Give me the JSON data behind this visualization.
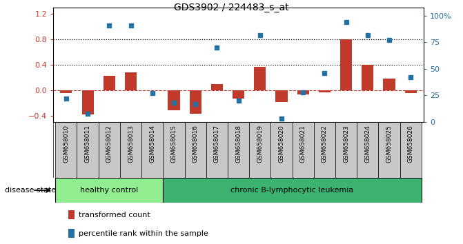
{
  "title": "GDS3902 / 224483_s_at",
  "samples": [
    "GSM658010",
    "GSM658011",
    "GSM658012",
    "GSM658013",
    "GSM658014",
    "GSM658015",
    "GSM658016",
    "GSM658017",
    "GSM658018",
    "GSM658019",
    "GSM658020",
    "GSM658021",
    "GSM658022",
    "GSM658023",
    "GSM658024",
    "GSM658025",
    "GSM658026"
  ],
  "transformed_count": [
    -0.05,
    -0.38,
    0.22,
    0.28,
    0.0,
    -0.32,
    -0.37,
    0.1,
    -0.13,
    0.37,
    -0.19,
    -0.07,
    -0.03,
    0.8,
    0.4,
    0.18,
    -0.05
  ],
  "percentile_rank": [
    22,
    8,
    91,
    91,
    27,
    18,
    17,
    70,
    20,
    82,
    3,
    28,
    46,
    94,
    82,
    77,
    42
  ],
  "healthy_control_count": 5,
  "disease_label_healthy": "healthy control",
  "disease_label_chronic": "chronic B-lymphocytic leukemia",
  "disease_state_label": "disease state",
  "legend_transformed": "transformed count",
  "legend_percentile": "percentile rank within the sample",
  "ylim_left": [
    -0.5,
    1.3
  ],
  "ylim_right": [
    0,
    108.0
  ],
  "yticks_left": [
    -0.4,
    0.0,
    0.4,
    0.8,
    1.2
  ],
  "yticks_right": [
    0,
    25,
    50,
    75,
    100
  ],
  "ytick_labels_right": [
    "0",
    "25",
    "50",
    "75",
    "100%"
  ],
  "hlines": [
    0.4,
    0.8
  ],
  "bar_color": "#C0392B",
  "dot_color": "#2471A3",
  "healthy_bg": "#90EE90",
  "chronic_bg": "#3CB371",
  "tick_label_bg": "#C8C8C8",
  "zero_line_color": "#C0392B",
  "bar_width": 0.55
}
